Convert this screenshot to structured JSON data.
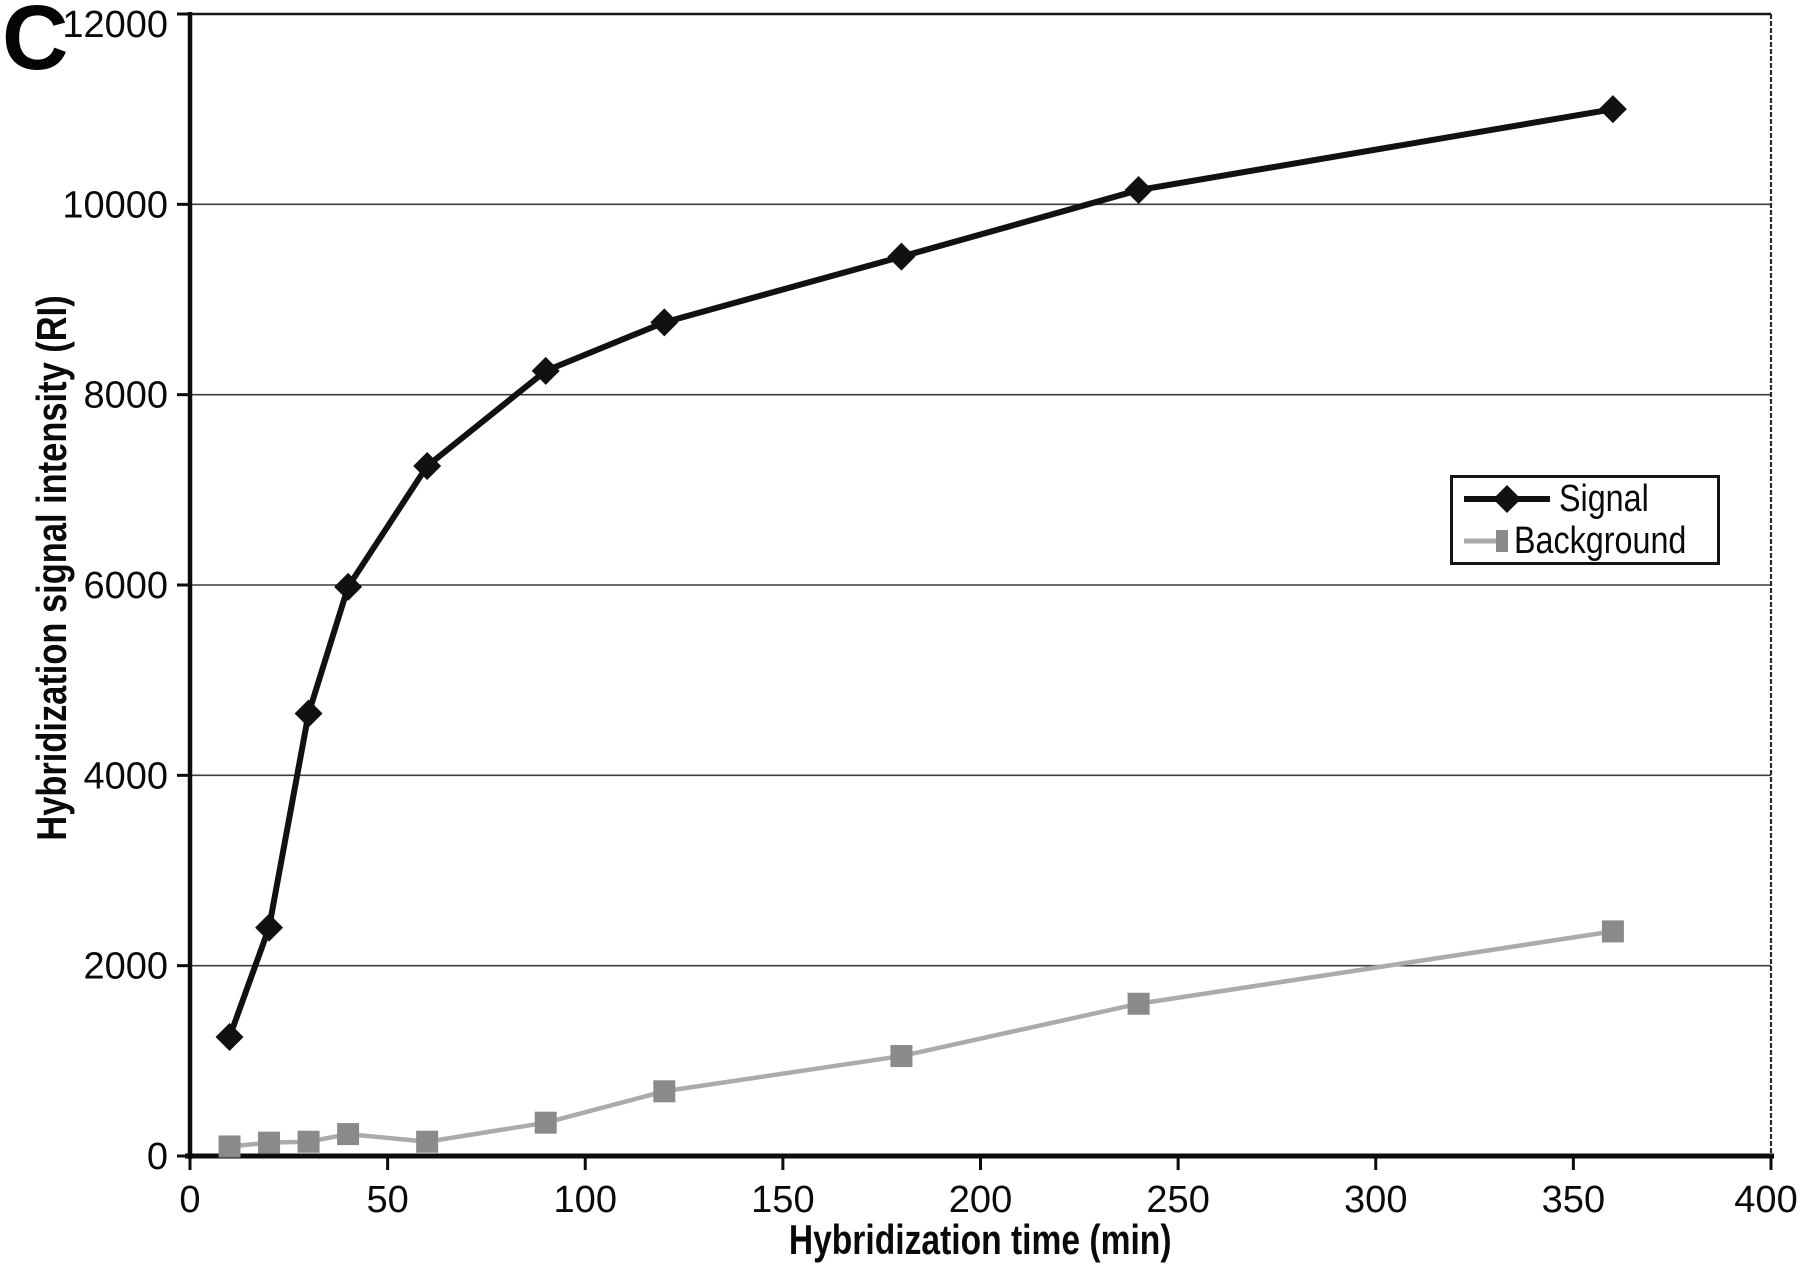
{
  "panel_label": "C",
  "chart_data": {
    "type": "line",
    "title": "",
    "xlabel": "Hybridization time (min)",
    "ylabel": "Hybridization signal intensity (RI)",
    "xlim": [
      0,
      400
    ],
    "ylim": [
      0,
      12000
    ],
    "x_ticks": [
      0,
      50,
      100,
      150,
      200,
      250,
      300,
      350,
      400
    ],
    "y_ticks": [
      0,
      2000,
      4000,
      6000,
      8000,
      10000,
      12000
    ],
    "grid": "horizontal gridlines at every 2000",
    "legend_position": "inside right, upper middle",
    "x": [
      10,
      20,
      30,
      40,
      60,
      90,
      120,
      180,
      240,
      360
    ],
    "series": [
      {
        "name": "Signal",
        "marker": "diamond",
        "color": "#111111",
        "line_color": "#111111",
        "values": [
          1250,
          2400,
          4650,
          5980,
          7250,
          8250,
          8760,
          9450,
          10150,
          11000
        ]
      },
      {
        "name": "Background",
        "marker": "square",
        "color": "#8a8a8a",
        "line_color": "#ababab",
        "values": [
          100,
          140,
          150,
          230,
          150,
          350,
          680,
          1050,
          1600,
          2360
        ]
      }
    ]
  },
  "colors": {
    "background": "#ffffff",
    "axis": "#111111",
    "gridline": "#3d3d3d",
    "tick_text": "#0a0a0a"
  }
}
